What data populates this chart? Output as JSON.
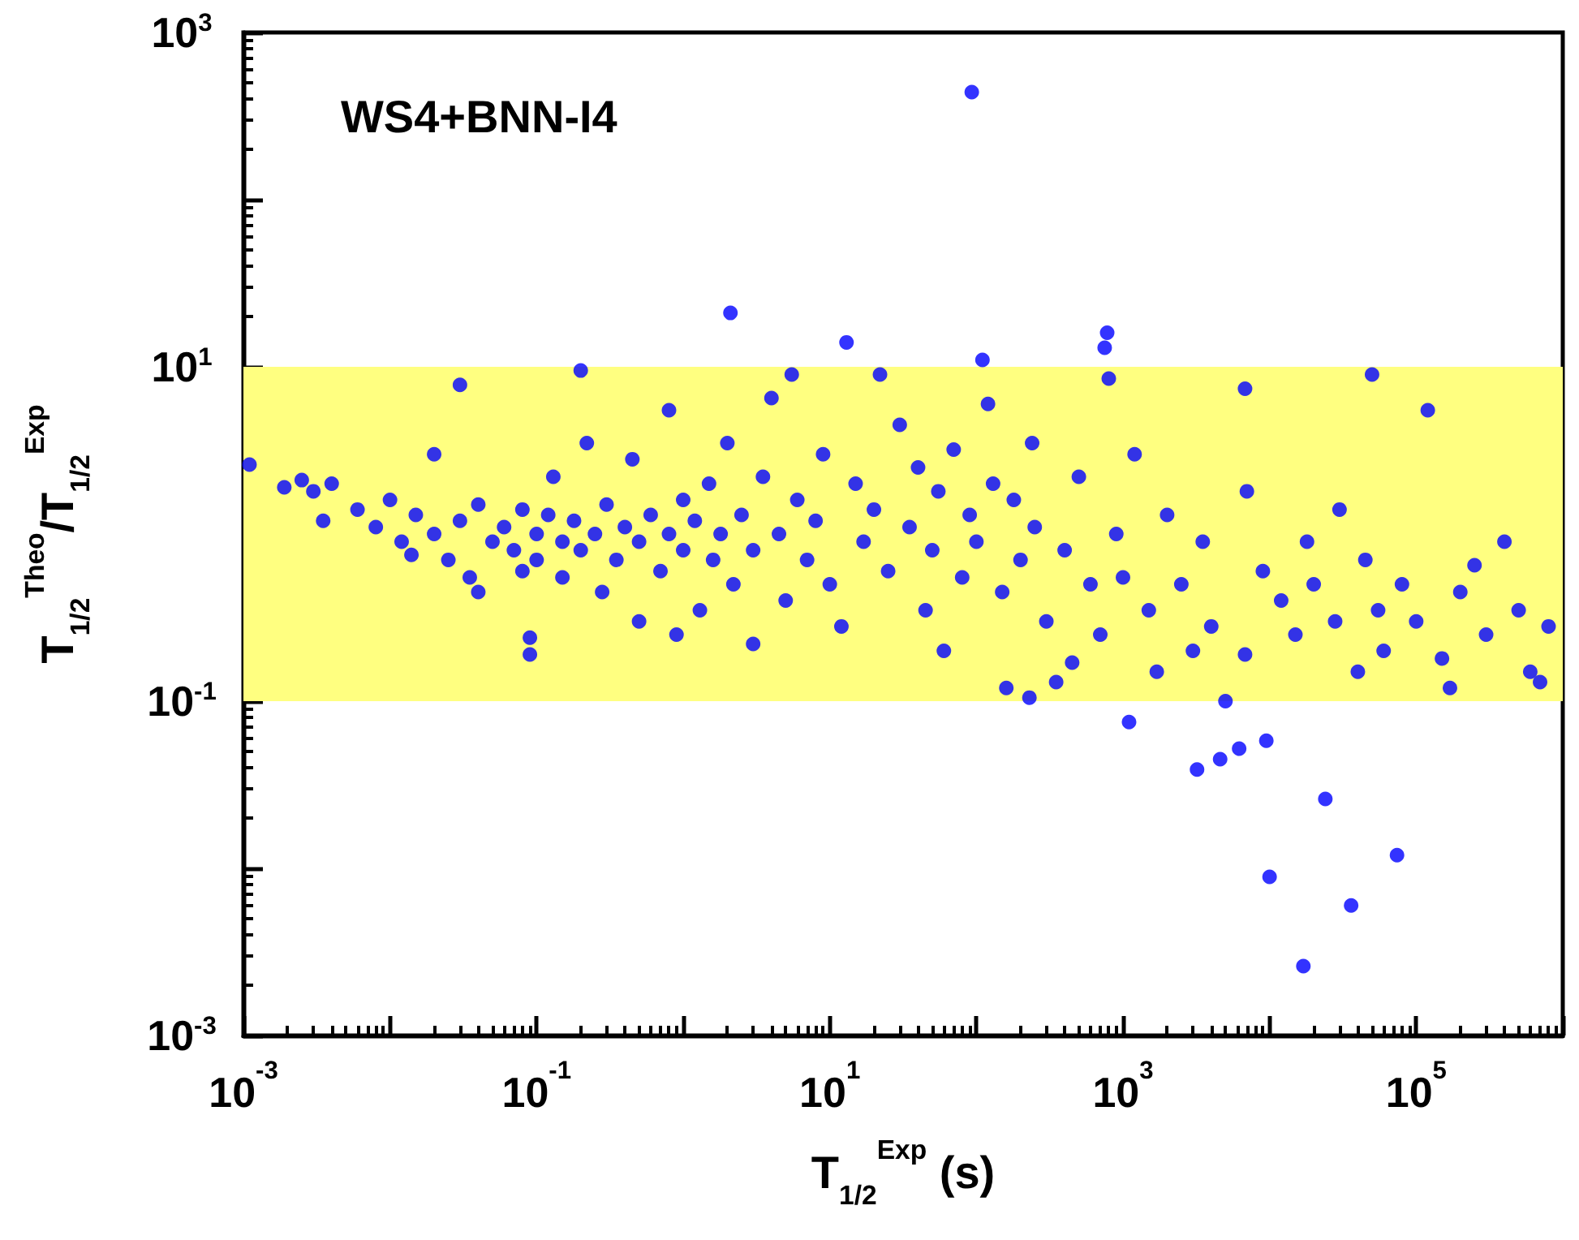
{
  "chart_data": {
    "type": "scatter",
    "xlabel": "T$_{1/2}$$^{Exp}$ (s)",
    "ylabel": "T$_{1/2}$$^{Theo}$/T$_{1/2}$$^{Exp}$",
    "annotations": [
      "WS4+BNN-I4"
    ],
    "log": "xy",
    "grid": false,
    "marker": "circle",
    "color": "#0000ff",
    "xlim": [
      0.001,
      1000000
    ],
    "ylim": [
      0.001,
      1000
    ],
    "xticks": [
      {
        "value": 0.001,
        "label": "10$^{-3}$"
      },
      {
        "value": 0.01,
        "label": null
      },
      {
        "value": 0.1,
        "label": "10$^{-1}$"
      },
      {
        "value": 1,
        "label": null
      },
      {
        "value": 10,
        "label": "10$^{1}$"
      },
      {
        "value": 100,
        "label": null
      },
      {
        "value": 1000,
        "label": "10$^{3}$"
      },
      {
        "value": 10000,
        "label": null
      },
      {
        "value": 100000,
        "label": "10$^{5}$"
      },
      {
        "value": 1000000,
        "label": null
      }
    ],
    "yticks": [
      {
        "value": 0.001,
        "label": "10$^{-3}$"
      },
      {
        "value": 0.01,
        "label": null
      },
      {
        "value": 0.1,
        "label": "10$^{-1}$"
      },
      {
        "value": 1,
        "label": null
      },
      {
        "value": 10,
        "label": "10$^{1}$"
      },
      {
        "value": 100,
        "label": null
      },
      {
        "value": 1000,
        "label": "10$^{3}$"
      }
    ],
    "bands": [
      {
        "axis": "y",
        "from": 0.1,
        "to": 10,
        "color": "#ffff80"
      }
    ],
    "x": [
      0.0011,
      0.0019,
      0.0025,
      0.003,
      0.0035,
      0.004,
      0.006,
      0.008,
      0.01,
      0.012,
      0.014,
      0.015,
      0.02,
      0.02,
      0.025,
      0.03,
      0.03,
      0.035,
      0.04,
      0.04,
      0.05,
      0.06,
      0.07,
      0.08,
      0.08,
      0.09,
      0.09,
      0.1,
      0.1,
      0.12,
      0.13,
      0.15,
      0.15,
      0.18,
      0.2,
      0.2,
      0.22,
      0.25,
      0.28,
      0.3,
      0.35,
      0.4,
      0.45,
      0.5,
      0.5,
      0.6,
      0.7,
      0.8,
      0.8,
      0.9,
      1,
      1,
      1.2,
      1.3,
      1.5,
      1.6,
      1.8,
      2,
      2.1,
      2.2,
      2.5,
      3,
      3,
      3.5,
      4,
      4.5,
      5,
      5.5,
      6,
      7,
      8,
      9,
      10,
      12,
      13,
      15,
      17,
      20,
      22,
      25,
      30,
      35,
      40,
      45,
      50,
      55,
      60,
      70,
      80,
      90,
      93,
      100,
      110,
      120,
      130,
      150,
      160,
      180,
      200,
      230,
      240,
      250,
      300,
      350,
      400,
      450,
      500,
      600,
      700,
      780,
      750,
      800,
      900,
      1000,
      1100,
      1200,
      1500,
      1700,
      2000,
      2500,
      3000,
      3200,
      3500,
      4000,
      4600,
      5000,
      6200,
      6800,
      6800,
      7000,
      9000,
      9500,
      10000,
      12000,
      15000,
      17000,
      18000,
      20000,
      24000,
      28000,
      30000,
      36000,
      40000,
      45000,
      50000,
      55000,
      60000,
      74000,
      80000,
      100000,
      120000,
      150000,
      170000,
      200000,
      250000,
      300000,
      400000,
      500000,
      600000,
      700000,
      800000
    ],
    "values": [
      2.6,
      1.9,
      2.1,
      1.8,
      1.2,
      2,
      1.4,
      1.1,
      1.6,
      0.9,
      0.75,
      1.3,
      1,
      3,
      0.7,
      1.2,
      7.8,
      0.55,
      1.5,
      0.45,
      0.9,
      1.1,
      0.8,
      1.4,
      0.6,
      0.24,
      0.19,
      1,
      0.7,
      1.3,
      2.2,
      0.55,
      0.9,
      1.2,
      9.5,
      0.8,
      3.5,
      1,
      0.45,
      1.5,
      0.7,
      1.1,
      2.8,
      0.9,
      0.3,
      1.3,
      0.6,
      1,
      5.5,
      0.25,
      1.6,
      0.8,
      1.2,
      0.35,
      2,
      0.7,
      1,
      3.5,
      21,
      0.5,
      1.3,
      0.8,
      0.22,
      2.2,
      6.5,
      1,
      0.4,
      9,
      1.6,
      0.7,
      1.2,
      3,
      0.5,
      0.28,
      14,
      2,
      0.9,
      1.4,
      9,
      0.6,
      4.5,
      1.1,
      2.5,
      0.35,
      0.8,
      1.8,
      0.2,
      3.2,
      0.55,
      1.3,
      440,
      0.9,
      11,
      6,
      2,
      0.45,
      0.12,
      1.6,
      0.7,
      0.105,
      3.5,
      1.1,
      0.3,
      0.13,
      0.8,
      0.17,
      2.2,
      0.5,
      0.25,
      16,
      13,
      8.5,
      1,
      0.55,
      0.075,
      3,
      0.35,
      0.15,
      1.3,
      0.5,
      0.2,
      0.039,
      0.9,
      0.28,
      0.045,
      0.1,
      0.052,
      7.4,
      0.19,
      1.8,
      0.6,
      0.058,
      0.0089,
      0.4,
      0.25,
      0.0026,
      0.9,
      0.5,
      0.026,
      0.3,
      1.4,
      0.006,
      0.15,
      0.7,
      9,
      0.35,
      0.2,
      0.012,
      0.5,
      0.3,
      5.5,
      0.18,
      0.12,
      0.45,
      0.65,
      0.25,
      0.9,
      0.35,
      0.15,
      0.13,
      0.28
    ]
  }
}
